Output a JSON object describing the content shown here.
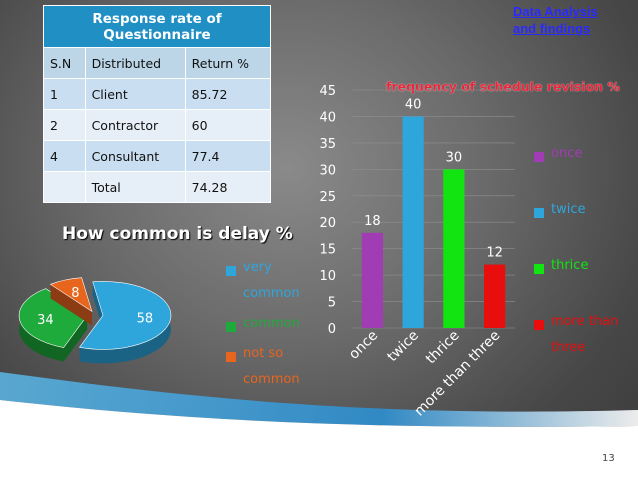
{
  "slide": {
    "section_title_line1": "Data Analysis",
    "section_title_line2": "and findings",
    "slide_number": "13"
  },
  "questionnaire_table": {
    "title_line1": "Response rate of",
    "title_line2": "Questionnaire",
    "columns": [
      "S.N",
      "Distributed",
      "Return %"
    ],
    "rows": [
      [
        "1",
        "Client",
        "85.72"
      ],
      [
        "2",
        "Contractor",
        "60"
      ],
      [
        "4",
        "Consultant",
        "77.4"
      ],
      [
        "",
        "Total",
        "74.28"
      ]
    ]
  },
  "chart_data": [
    {
      "type": "pie",
      "title": "How common is delay %",
      "labels": [
        "very common",
        "common",
        "not so common"
      ],
      "values": [
        58,
        34,
        8
      ],
      "colors": [
        "#2ea6dc",
        "#1faa3c",
        "#e8651e"
      ],
      "legend_lines": [
        [
          "very",
          "common"
        ],
        [
          "common"
        ],
        [
          "not so",
          "common"
        ]
      ]
    },
    {
      "type": "bar",
      "title": "frequency of schedule revision %",
      "categories": [
        "once",
        "twice",
        "thrice",
        "more than three"
      ],
      "values": [
        18,
        40,
        30,
        12
      ],
      "colors": [
        "#a03cb4",
        "#2ea6dc",
        "#11e411",
        "#e80e0e"
      ],
      "ylim": [
        0,
        45
      ],
      "yticks": [
        "0",
        "5",
        "10",
        "15",
        "20",
        "25",
        "30",
        "35",
        "40",
        "45"
      ],
      "legend_lines": [
        [
          "once"
        ],
        [
          "twice"
        ],
        [
          "thrice"
        ],
        [
          "more than",
          "three"
        ]
      ]
    }
  ]
}
